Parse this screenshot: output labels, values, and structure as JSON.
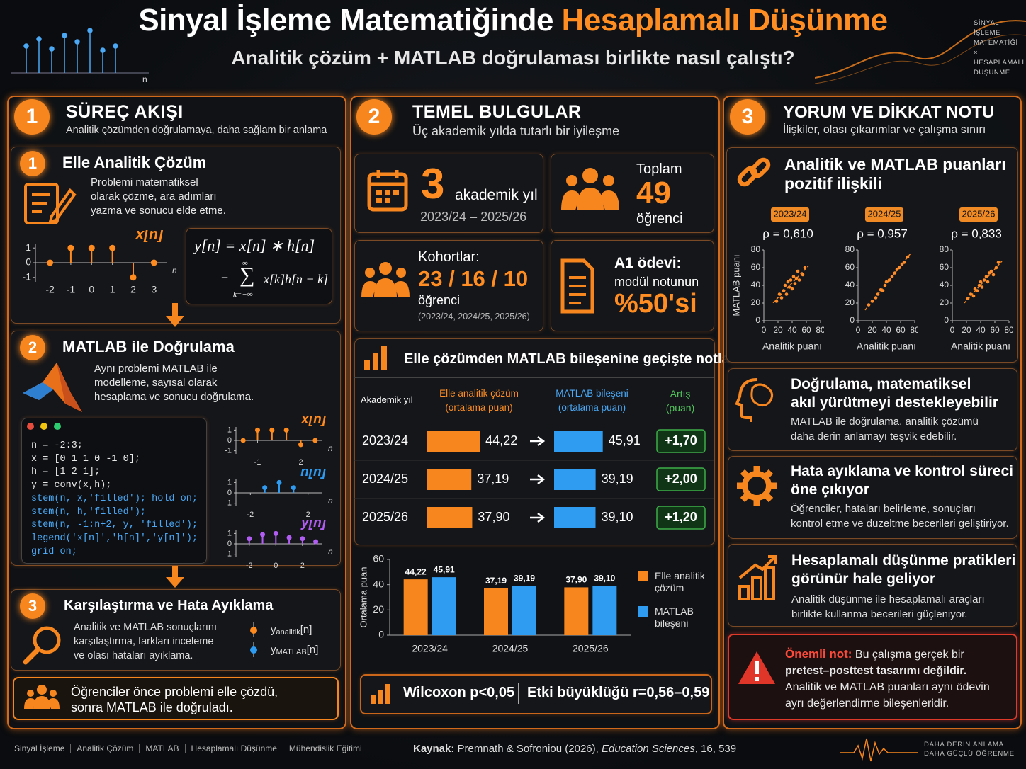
{
  "header": {
    "title_part1": "Sinyal İşleme Matematiğinde",
    "title_part2": "Hesaplamalı Düşünme",
    "subtitle": "Analitik çözüm + MATLAB doğrulaması birlikte nasıl çalıştı?",
    "axis_label": "n",
    "corner_text": [
      "SİNYAL",
      "İŞLEME",
      "MATEMATİĞİ",
      "×",
      "HESAPLAMALI",
      "DÜŞÜNME"
    ]
  },
  "process": {
    "number": "1",
    "title": "SÜREÇ AKIŞI",
    "subtitle": "Analitik çözümden doğrulamaya, daha sağlam bir anlama",
    "step1": {
      "number": "1",
      "title": "Elle Analitik Çözüm",
      "text": [
        "Problemi matematiksel",
        "olarak çözme, ara adımları",
        "yazma ve sonucu elde etme."
      ],
      "plot": {
        "label": "x[n]",
        "axis_label": "n",
        "color": "#ff8a1e",
        "n": [
          -2,
          -1,
          0,
          1,
          2,
          3
        ],
        "values": [
          0,
          1,
          1,
          1,
          -1,
          0
        ],
        "xlim": [
          -2.7,
          3.6
        ],
        "ylim": [
          -1.3,
          1.3
        ],
        "xticks": [
          -2,
          -1,
          0,
          1,
          2,
          3
        ],
        "yticks": [
          1,
          0,
          -1
        ]
      },
      "formula": {
        "lhs": "y[n] = x[n] ∗ h[n]",
        "eq": "=",
        "sum": "∑",
        "upper": "∞",
        "lower": "k=−∞",
        "term": "x[k]h[n − k]"
      }
    },
    "step2": {
      "number": "2",
      "title": "MATLAB ile Doğrulama",
      "text": [
        "Aynı problemi MATLAB ile",
        "modelleme, sayısal olarak",
        "hesaplama ve sonucu doğrulama."
      ],
      "code": [
        "n = -2:3;",
        "x = [0 1 1 0 -1 0];",
        "h = [1 2 1];",
        "y = conv(x,h);",
        "stem(n, x,'filled');  hold on;",
        "stem(n, h,'filled');",
        "stem(n, -1:n+2, y, 'filled');",
        "legend('x[n]','h[n]','y[n]');",
        "grid on;"
      ],
      "plots": [
        {
          "label": "x[n]",
          "axis_label": "n",
          "color": "#ff8a1e",
          "n": [
            -2,
            -1,
            0,
            1,
            2,
            3
          ],
          "values": [
            0,
            1,
            1,
            1,
            -0.4,
            0
          ],
          "xlim": [
            -2.5,
            3.5
          ],
          "ylim": [
            -1.3,
            1.3
          ],
          "xticks": [
            -1,
            2
          ],
          "yticks": [
            1,
            0,
            -1
          ]
        },
        {
          "label": "h[n]",
          "axis_label": "n",
          "color": "#2e9bf0",
          "n": [
            -1,
            0,
            1
          ],
          "values": [
            0.5,
            1,
            0.5
          ],
          "xlim": [
            -3,
            3
          ],
          "ylim": [
            -1.3,
            1.3
          ],
          "xticks": [
            -2,
            2
          ],
          "yticks": [
            1,
            0,
            -1
          ]
        },
        {
          "label": "y[n]",
          "axis_label": "n",
          "color": "#b15cf2",
          "n": [
            -2,
            -1,
            0,
            1,
            2,
            3
          ],
          "values": [
            0.5,
            0.9,
            1,
            0.6,
            0.5,
            0.2
          ],
          "xlim": [
            -3,
            3.5
          ],
          "ylim": [
            -1.3,
            1.3
          ],
          "xticks": [
            -2,
            0,
            2
          ],
          "yticks": [
            1,
            0,
            -1
          ]
        }
      ]
    },
    "step3": {
      "number": "3",
      "title": "Karşılaştırma ve Hata Ayıklama",
      "text": [
        "Analitik ve MATLAB sonuçlarını",
        "karşılaştırma, farkları inceleme",
        "ve olası hataları ayıklama."
      ],
      "legend": [
        {
          "symbol": "y",
          "sub": "analitik",
          "tail": "[n]",
          "color": "#ff8a1e"
        },
        {
          "symbol": "y",
          "sub": "MATLAB",
          "tail": "[n]",
          "color": "#2e9bf0"
        }
      ]
    },
    "note": [
      "Öğrenciler önce problemi elle çözdü,",
      "sonra MATLAB ile doğruladı."
    ]
  },
  "findings": {
    "number": "2",
    "title": "TEMEL BULGULAR",
    "subtitle": "Üç akademik yılda tutarlı bir iyileşme",
    "years_card": {
      "value": "3",
      "label": "akademik yıl",
      "range": "2023/24 – 2025/26"
    },
    "students_card": {
      "label": "Toplam",
      "value": "49",
      "unit": "öğrenci"
    },
    "cohorts_card": {
      "label": "Kohortlar:",
      "value": "23 / 16 / 10",
      "unit": "öğrenci",
      "note": "(2023/24, 2024/25, 2025/26)"
    },
    "assignment_card": {
      "label": "A1 ödevi:",
      "text": "modül notunun",
      "value": "%50'si"
    },
    "table": {
      "title": "Elle çözümden MATLAB bileşenine geçişte notlar",
      "headers": [
        {
          "title": "Akademik yıl"
        },
        {
          "title": "Elle analitik çözüm",
          "sub": "(ortalama puan)"
        },
        {
          "title": "MATLAB bileşeni",
          "sub": "(ortalama puan)"
        },
        {
          "title": "Artış",
          "sub": "(puan)"
        }
      ],
      "years": [
        "2023/24",
        "2024/25",
        "2025/26"
      ],
      "analytic": {
        "values": [
          44.22,
          37.19,
          37.9
        ],
        "value_labels": [
          "44,22",
          "37,19",
          "37,90"
        ]
      },
      "matlab": {
        "values": [
          45.91,
          39.19,
          39.1
        ],
        "value_labels": [
          "45,91",
          "39,19",
          "39,10"
        ]
      },
      "gain": [
        "+1,70",
        "+2,00",
        "+1,20"
      ]
    },
    "chart": {
      "type": "bar",
      "ylabel": "Ortalama puan",
      "categories": [
        "2023/24",
        "2024/25",
        "2025/26"
      ],
      "series": [
        {
          "name": "Elle analitik çözüm",
          "color": "#f7861f",
          "values": [
            44.22,
            37.19,
            37.9
          ],
          "value_labels": [
            "44,22",
            "37,19",
            "37,90"
          ]
        },
        {
          "name": "MATLAB bileşeni",
          "color": "#2f9cf2",
          "values": [
            45.91,
            39.19,
            39.1
          ],
          "value_labels": [
            "45,91",
            "39,19",
            "39,10"
          ]
        }
      ],
      "ylim": [
        0,
        60
      ],
      "yticks": [
        0,
        20,
        40,
        60
      ]
    },
    "stats": [
      "Wilcoxon p<0,05",
      "Etki büyüklüğü r=0,56–0,59"
    ]
  },
  "interpretation": {
    "number": "3",
    "title": "YORUM VE DİKKAT NOTU",
    "subtitle": "İlişkiler, olası çıkarımlar ve çalışma sınırı",
    "correlation": {
      "title": [
        "Analitik ve MATLAB puanları",
        "pozitif ilişkili"
      ],
      "xlabel": "Analitik puanı",
      "ylabel": "MATLAB puanı",
      "xlim": [
        0,
        80
      ],
      "ylim": [
        0,
        80
      ],
      "xticks": [
        0,
        20,
        40,
        60,
        80
      ],
      "yticks": [
        0,
        20,
        40,
        60,
        80
      ],
      "plots": [
        {
          "year": "2023/24",
          "rho": "ρ = 0,610",
          "x": [
            18,
            22,
            25,
            28,
            30,
            32,
            34,
            36,
            38,
            40,
            42,
            44,
            46,
            48,
            50,
            55,
            58
          ],
          "y": [
            22,
            30,
            26,
            34,
            40,
            30,
            44,
            38,
            46,
            36,
            50,
            42,
            48,
            56,
            46,
            52,
            60
          ]
        },
        {
          "year": "2024/25",
          "rho": "ρ = 0,957",
          "x": [
            15,
            20,
            25,
            28,
            32,
            35,
            38,
            40,
            44,
            48,
            52,
            55,
            58,
            62,
            65,
            70
          ],
          "y": [
            18,
            22,
            26,
            30,
            35,
            34,
            40,
            44,
            46,
            50,
            54,
            58,
            60,
            64,
            66,
            72
          ]
        },
        {
          "year": "2025/26",
          "rho": "ρ = 0,833",
          "x": [
            22,
            26,
            30,
            32,
            35,
            38,
            40,
            42,
            45,
            48,
            50,
            52,
            55,
            58,
            62,
            65
          ],
          "y": [
            25,
            30,
            28,
            36,
            34,
            40,
            44,
            38,
            46,
            50,
            44,
            54,
            56,
            52,
            60,
            66
          ]
        }
      ]
    },
    "cards": [
      {
        "title": [
          "Doğrulama, matematiksel",
          "akıl yürütmeyi destekleyebilir"
        ],
        "text": [
          "MATLAB ile doğrulama, analitik çözümü",
          "daha derin anlamayı teşvik edebilir."
        ]
      },
      {
        "title": [
          "Hata ayıklama ve kontrol süreci",
          "öne çıkıyor"
        ],
        "text": [
          "Öğrenciler, hataları belirleme, sonuçları",
          "kontrol etme ve düzeltme becerileri geliştiriyor."
        ]
      },
      {
        "title": [
          "Hesaplamalı düşünme pratikleri",
          "görünür hale geliyor"
        ],
        "text": [
          "Analitik düşünme ile hesaplamalı araçları",
          "birlikte kullanma becerileri güçleniyor."
        ]
      }
    ],
    "note": {
      "label": "Önemli not:",
      "lines": [
        "Bu çalışma gerçek bir",
        "pretest–posttest tasarımı değildir.",
        "Analitik ve MATLAB puanları aynı ödevin",
        "ayrı değerlendirme bileşenleridir."
      ]
    }
  },
  "footer": {
    "tags": [
      "Sinyal İşleme",
      "Analitik Çözüm",
      "MATLAB",
      "Hesaplamalı Düşünme",
      "Mühendislik Eğitimi"
    ],
    "source": {
      "label": "Kaynak:",
      "authors": "Premnath & Sofroniou (2026),",
      "journal": "Education Sciences",
      "issue": ", 16, 539"
    },
    "slogan": [
      "DAHA DERİN ANLAMA",
      "DAHA GÜÇLÜ ÖĞRENME"
    ]
  }
}
